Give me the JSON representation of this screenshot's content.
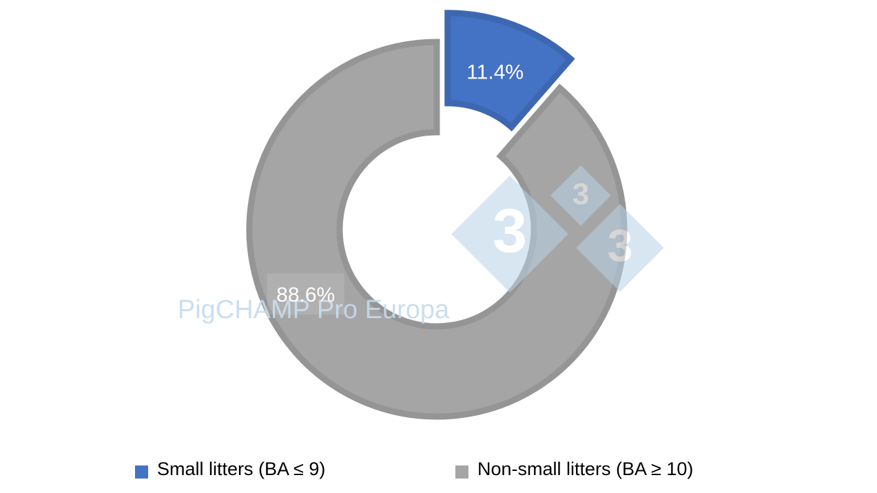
{
  "chart_data": {
    "type": "donut",
    "categories": [
      "Small litters (BA ≤ 9)",
      "Non-small litters (BA ≥ 10)"
    ],
    "values": [
      11.4,
      88.6
    ],
    "value_labels": [
      "11.4%",
      "88.6%"
    ],
    "colors": [
      "#4472c4",
      "#a5a5a5"
    ],
    "exploded": [
      true,
      false
    ],
    "legend": "bottom",
    "watermark": "PigCHAMP Pro Europa",
    "logo_text": "3"
  }
}
